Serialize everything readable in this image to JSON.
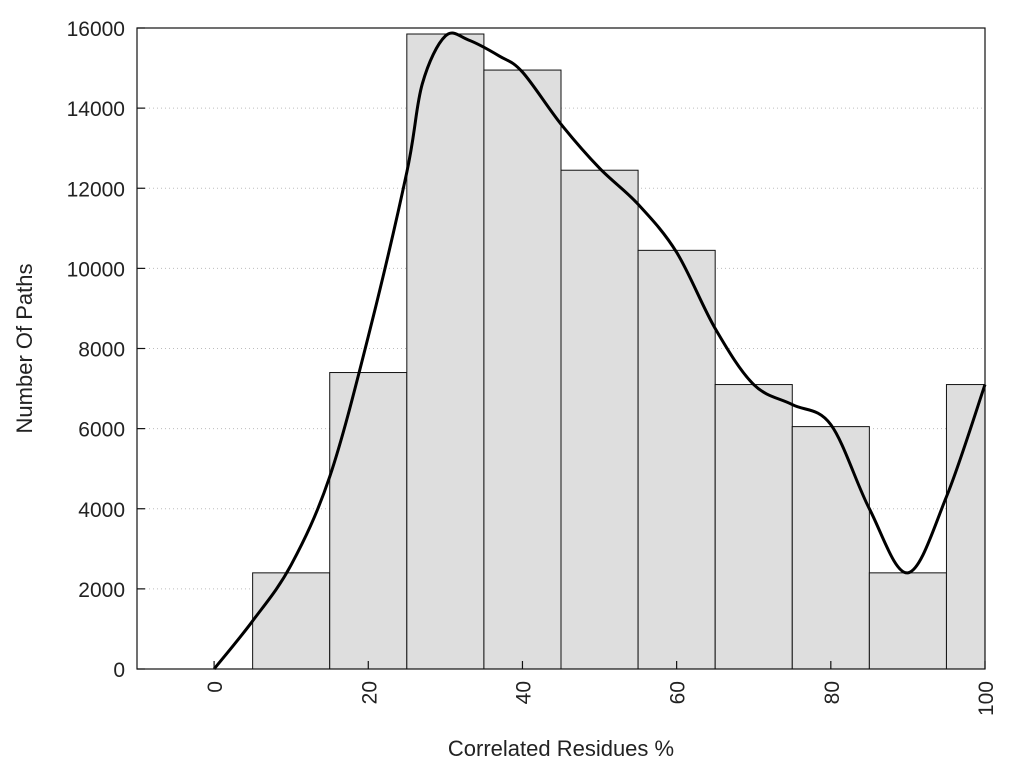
{
  "chart_data": {
    "type": "bar",
    "xlabel": "Correlated Residues %",
    "ylabel": "Number Of Paths",
    "xlim": [
      -10,
      100
    ],
    "ylim": [
      0,
      16000
    ],
    "x_ticks": [
      0,
      20,
      40,
      60,
      80,
      100
    ],
    "y_ticks": [
      0,
      2000,
      4000,
      6000,
      8000,
      10000,
      12000,
      14000,
      16000
    ],
    "grid": "horizontal-dotted",
    "bin_width": 10,
    "bars": {
      "centers": [
        0,
        10,
        20,
        30,
        40,
        50,
        60,
        70,
        80,
        90,
        100
      ],
      "values": [
        0,
        2400,
        7400,
        15850,
        14950,
        12450,
        10450,
        7100,
        6050,
        2400,
        7100
      ]
    },
    "curve": {
      "x": [
        0,
        5,
        10,
        15,
        20,
        25,
        27,
        30,
        33,
        37,
        40,
        45,
        50,
        55,
        60,
        65,
        70,
        75,
        80,
        85,
        90,
        95,
        100
      ],
      "y": [
        0,
        1200,
        2600,
        4800,
        8300,
        12400,
        14600,
        15800,
        15700,
        15300,
        14900,
        13600,
        12500,
        11600,
        10400,
        8500,
        7100,
        6600,
        6100,
        4000,
        2400,
        4300,
        7100
      ]
    },
    "colors": {
      "bar_fill": "#dedede",
      "bar_stroke": "#111111",
      "curve": "#000000",
      "grid": "#bdbdbd",
      "axis": "#111111"
    }
  }
}
